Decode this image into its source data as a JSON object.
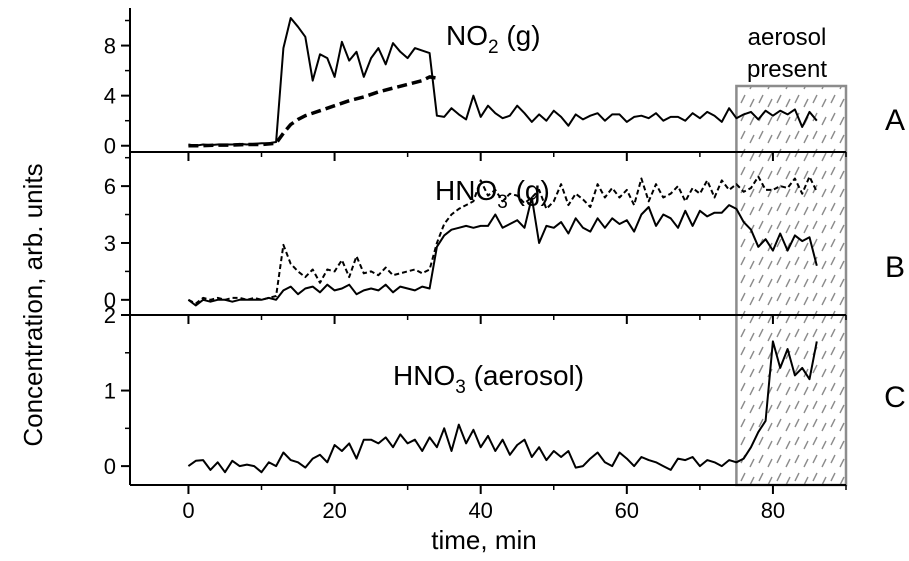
{
  "chart_data": {
    "type": "line",
    "xlabel": "time, min",
    "ylabel": "Concentration, arb. units",
    "xlim": [
      -8,
      90
    ],
    "xticks": [
      0,
      20,
      40,
      60,
      80
    ],
    "aerosol_region": {
      "x_start": 75,
      "x_end": 90,
      "label_line1": "aerosol",
      "label_line2": "present"
    },
    "panels": [
      {
        "id": "A",
        "letter": "A",
        "title_main": "NO",
        "title_sub": "2",
        "title_rest": " (g)",
        "ylim": [
          -0.5,
          11
        ],
        "yticks": [
          0,
          4,
          8
        ],
        "series": [
          {
            "style": "solid",
            "x": [
              0,
              1,
              2,
              3,
              4,
              5,
              6,
              7,
              8,
              9,
              10,
              11,
              12,
              13,
              14,
              15,
              16,
              17,
              18,
              19,
              20,
              21,
              22,
              23,
              24,
              25,
              26,
              27,
              28,
              29,
              30,
              31,
              32,
              33,
              34,
              35,
              36,
              37,
              38,
              39,
              40,
              41,
              42,
              43,
              44,
              45,
              46,
              47,
              48,
              49,
              50,
              51,
              52,
              53,
              54,
              55,
              56,
              57,
              58,
              59,
              60,
              61,
              62,
              63,
              64,
              65,
              66,
              67,
              68,
              69,
              70,
              71,
              72,
              73,
              74,
              75,
              76,
              77,
              78,
              79,
              80,
              81,
              82,
              83,
              84,
              85,
              86
            ],
            "y": [
              0.1,
              0.0,
              0.1,
              0.05,
              0.1,
              0.1,
              0.1,
              0.15,
              0.1,
              0.15,
              0.2,
              0.2,
              0.3,
              7.8,
              10.2,
              9.5,
              8.7,
              5.2,
              7.3,
              7.0,
              5.5,
              8.3,
              6.8,
              7.5,
              5.5,
              7.0,
              7.8,
              6.5,
              8.2,
              7.5,
              7.0,
              7.8,
              7.6,
              7.4,
              2.4,
              2.3,
              3.0,
              2.5,
              2.1,
              4.0,
              2.3,
              3.2,
              2.6,
              2.2,
              2.4,
              3.2,
              2.6,
              1.9,
              2.5,
              2.0,
              2.8,
              2.3,
              1.6,
              2.5,
              2.1,
              2.4,
              2.6,
              2.0,
              2.5,
              2.5,
              1.9,
              2.3,
              2.4,
              2.2,
              2.6,
              2.0,
              2.3,
              2.3,
              2.0,
              2.6,
              2.2,
              2.7,
              2.4,
              1.9,
              3.0,
              2.2,
              2.5,
              2.7,
              2.1,
              2.8,
              2.4,
              2.8,
              2.5,
              2.9,
              1.5,
              2.7,
              2.0
            ]
          },
          {
            "style": "dashed",
            "x": [
              0,
              2,
              4,
              6,
              8,
              10,
              12,
              13,
              14,
              15,
              16,
              18,
              20,
              22,
              24,
              26,
              28,
              30,
              32,
              33,
              34
            ],
            "y": [
              0.0,
              0.0,
              0.05,
              0.05,
              0.1,
              0.1,
              0.2,
              1.0,
              1.7,
              2.1,
              2.4,
              2.8,
              3.2,
              3.6,
              3.9,
              4.3,
              4.6,
              4.9,
              5.2,
              5.5,
              5.4
            ]
          }
        ]
      },
      {
        "id": "B",
        "letter": "B",
        "title_main": "HNO",
        "title_sub": "3",
        "title_rest": " (g)",
        "ylim": [
          -0.8,
          7.8
        ],
        "yticks": [
          0,
          3,
          6
        ],
        "series": [
          {
            "style": "solid",
            "x": [
              0,
              1,
              2,
              3,
              4,
              5,
              6,
              7,
              8,
              9,
              10,
              11,
              12,
              13,
              14,
              15,
              16,
              17,
              18,
              19,
              20,
              21,
              22,
              23,
              24,
              25,
              26,
              27,
              28,
              29,
              30,
              31,
              32,
              33,
              34,
              35,
              36,
              37,
              38,
              39,
              40,
              41,
              42,
              43,
              44,
              45,
              46,
              47,
              48,
              49,
              50,
              51,
              52,
              53,
              54,
              55,
              56,
              57,
              58,
              59,
              60,
              61,
              62,
              63,
              64,
              65,
              66,
              67,
              68,
              69,
              70,
              71,
              72,
              73,
              74,
              75,
              76,
              77,
              78,
              79,
              80,
              81,
              82,
              83,
              84,
              85,
              86
            ],
            "y": [
              0.0,
              -0.3,
              0.0,
              -0.1,
              0.0,
              0.0,
              -0.1,
              0.0,
              0.0,
              0.0,
              0.0,
              0.1,
              0.0,
              0.5,
              0.7,
              0.3,
              0.6,
              0.7,
              0.4,
              0.8,
              0.5,
              0.6,
              0.8,
              0.3,
              0.5,
              0.6,
              0.5,
              0.8,
              0.4,
              0.7,
              0.6,
              0.5,
              0.7,
              0.6,
              2.8,
              3.4,
              3.7,
              3.8,
              3.9,
              3.8,
              3.9,
              3.9,
              4.5,
              3.8,
              4.0,
              4.2,
              3.8,
              5.4,
              3.0,
              3.9,
              3.8,
              4.1,
              3.5,
              4.3,
              3.8,
              3.6,
              4.3,
              3.8,
              4.3,
              4.0,
              4.2,
              3.6,
              4.5,
              4.9,
              3.9,
              4.5,
              4.3,
              3.8,
              4.7,
              3.9,
              4.7,
              4.4,
              4.6,
              4.6,
              5.0,
              4.8,
              4.1,
              3.7,
              2.8,
              3.2,
              2.6,
              3.5,
              2.6,
              3.4,
              3.1,
              3.3,
              1.8
            ]
          },
          {
            "style": "dotted",
            "x": [
              0,
              1,
              2,
              3,
              4,
              5,
              6,
              7,
              8,
              9,
              10,
              11,
              12,
              13,
              14,
              15,
              16,
              17,
              18,
              19,
              20,
              21,
              22,
              23,
              24,
              25,
              26,
              27,
              28,
              29,
              30,
              31,
              32,
              33,
              34,
              35,
              36,
              37,
              38,
              39,
              40,
              41,
              42,
              43,
              44,
              45,
              46,
              47,
              48,
              49,
              50,
              51,
              52,
              53,
              54,
              55,
              56,
              57,
              58,
              59,
              60,
              61,
              62,
              63,
              64,
              65,
              66,
              67,
              68,
              69,
              70,
              71,
              72,
              73,
              74,
              75,
              76,
              77,
              78,
              79,
              80,
              81,
              82,
              83,
              84,
              85,
              86
            ],
            "y": [
              0.0,
              -0.2,
              0.1,
              0.0,
              0.1,
              0.0,
              0.1,
              0.1,
              0.0,
              0.1,
              0.0,
              0.1,
              0.2,
              2.9,
              1.9,
              1.5,
              1.2,
              1.6,
              0.9,
              1.6,
              1.5,
              2.1,
              1.2,
              2.3,
              1.4,
              1.5,
              1.3,
              1.7,
              1.3,
              1.4,
              1.5,
              1.6,
              1.4,
              1.6,
              3.0,
              4.0,
              4.5,
              4.8,
              5.0,
              5.2,
              6.3,
              5.5,
              5.8,
              5.2,
              5.6,
              5.5,
              5.1,
              5.4,
              5.8,
              4.8,
              5.2,
              6.1,
              5.0,
              5.6,
              5.3,
              4.9,
              6.1,
              5.4,
              5.9,
              5.4,
              5.8,
              5.0,
              6.4,
              5.2,
              6.1,
              5.4,
              5.6,
              6.0,
              5.2,
              5.9,
              5.6,
              6.3,
              5.4,
              6.3,
              5.8,
              6.1,
              5.7,
              5.9,
              6.5,
              5.8,
              5.8,
              6.0,
              5.9,
              6.4,
              5.6,
              6.5,
              5.7
            ]
          }
        ]
      },
      {
        "id": "C",
        "letter": "C",
        "title_main": "HNO",
        "title_sub": "3",
        "title_rest": " (aerosol)",
        "ylim": [
          -0.25,
          2.0
        ],
        "yticks": [
          0,
          1,
          2
        ],
        "series": [
          {
            "style": "solid",
            "x": [
              0,
              1,
              2,
              3,
              4,
              5,
              6,
              7,
              8,
              9,
              10,
              11,
              12,
              13,
              14,
              15,
              16,
              17,
              18,
              19,
              20,
              21,
              22,
              23,
              24,
              25,
              26,
              27,
              28,
              29,
              30,
              31,
              32,
              33,
              34,
              35,
              36,
              37,
              38,
              39,
              40,
              41,
              42,
              43,
              44,
              45,
              46,
              47,
              48,
              49,
              50,
              51,
              52,
              53,
              54,
              55,
              56,
              57,
              58,
              59,
              60,
              61,
              62,
              63,
              64,
              65,
              66,
              67,
              68,
              69,
              70,
              71,
              72,
              73,
              74,
              75,
              76,
              77,
              78,
              79,
              80,
              81,
              82,
              83,
              84,
              85,
              86
            ],
            "y": [
              0.0,
              0.07,
              0.08,
              -0.05,
              0.05,
              -0.08,
              0.07,
              0.0,
              0.02,
              0.0,
              -0.08,
              0.05,
              0.0,
              0.18,
              0.08,
              0.05,
              -0.02,
              0.1,
              0.15,
              0.05,
              0.28,
              0.2,
              0.3,
              0.1,
              0.35,
              0.35,
              0.3,
              0.38,
              0.25,
              0.42,
              0.3,
              0.35,
              0.2,
              0.38,
              0.25,
              0.5,
              0.2,
              0.55,
              0.3,
              0.48,
              0.25,
              0.4,
              0.2,
              0.35,
              0.15,
              0.28,
              0.35,
              0.12,
              0.25,
              0.08,
              0.2,
              0.12,
              0.2,
              -0.02,
              0.0,
              0.1,
              0.18,
              0.05,
              0.0,
              0.18,
              0.1,
              0.0,
              0.12,
              0.08,
              0.05,
              0.0,
              -0.05,
              0.1,
              0.08,
              0.12,
              0.0,
              0.08,
              0.05,
              0.0,
              0.08,
              0.05,
              0.1,
              0.25,
              0.45,
              0.6,
              1.65,
              1.3,
              1.55,
              1.2,
              1.3,
              1.15,
              1.65
            ]
          }
        ]
      }
    ]
  }
}
